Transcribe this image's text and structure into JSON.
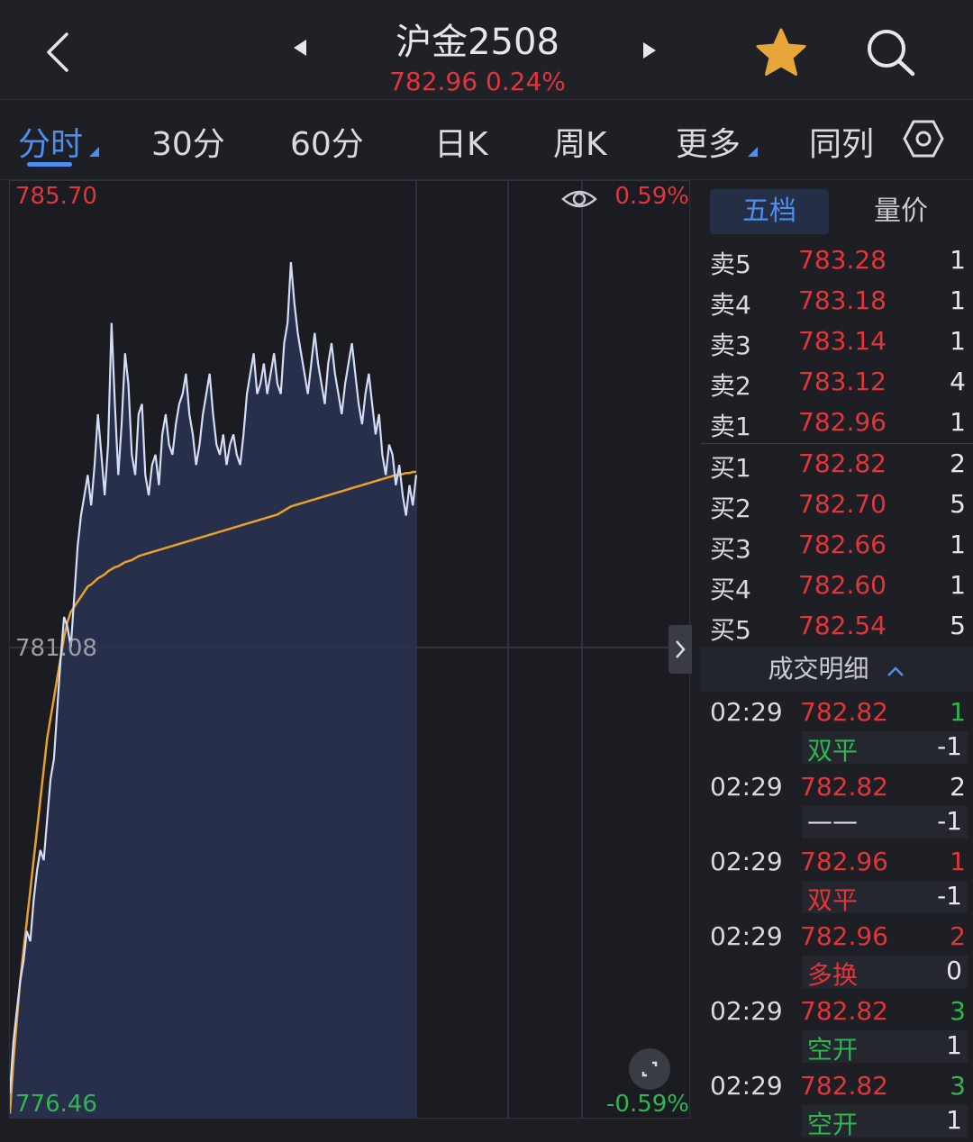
{
  "header": {
    "title": "沪金2508",
    "subtitle": "782.96  0.24%",
    "icons": [
      "back-icon",
      "prev-contract-icon",
      "next-contract-icon",
      "star-icon",
      "search-icon"
    ],
    "star_color": "#e8a63a"
  },
  "tabs": [
    {
      "label": "分时",
      "active": true
    },
    {
      "label": "30分"
    },
    {
      "label": "60分"
    },
    {
      "label": "日K"
    },
    {
      "label": "周K"
    },
    {
      "label": "更多"
    },
    {
      "label": "同列"
    }
  ],
  "chart": {
    "y_max_label": "785.70",
    "y_mid_label": "781.08",
    "y_min_label": "776.46",
    "pct_max_label": "0.59%",
    "pct_min_label": "-0.59%",
    "colors": {
      "price_line": "#d5dcf5",
      "avg_line": "#e8a12b",
      "fill": "#2a3352",
      "up": "#e0353a",
      "down": "#2fb552"
    }
  },
  "chart_data": {
    "type": "area",
    "ylim": [
      776.46,
      785.7
    ],
    "series": [
      {
        "values": [
          776.7,
          777.2,
          777.5,
          777.8,
          778.0,
          778.3,
          778.2,
          778.6,
          778.9,
          779.1,
          779.0,
          779.4,
          779.8,
          780.0,
          780.5,
          781.0,
          781.4,
          781.3,
          781.1,
          781.6,
          782.1,
          782.4,
          782.6,
          782.8,
          782.5,
          782.9,
          783.4,
          783.0,
          782.6,
          783.1,
          784.3,
          783.5,
          782.8,
          783.3,
          784.0,
          783.7,
          783.0,
          782.8,
          783.4,
          783.5,
          782.8,
          782.6,
          782.9,
          783.0,
          782.7,
          783.2,
          783.4,
          783.1,
          783.0,
          783.3,
          783.5,
          783.6,
          783.8,
          783.4,
          783.2,
          782.9,
          783.1,
          783.4,
          783.6,
          783.8,
          783.4,
          783.1,
          783.0,
          783.2,
          782.9,
          783.1,
          783.2,
          783.0,
          782.9,
          783.2,
          783.6,
          783.8,
          784.0,
          783.6,
          783.7,
          783.9,
          783.6,
          783.8,
          784.0,
          783.7,
          783.6,
          784.1,
          784.3,
          784.9,
          784.5,
          784.2,
          784.0,
          783.8,
          783.6,
          783.9,
          784.2,
          783.9,
          783.7,
          783.5,
          783.9,
          784.1,
          783.8,
          783.6,
          783.4,
          783.7,
          783.9,
          784.1,
          783.8,
          783.5,
          783.3,
          783.6,
          783.8,
          783.5,
          783.2,
          783.4,
          783.0,
          782.8,
          783.1,
          783.0,
          782.7,
          782.9,
          782.6,
          782.4,
          782.7,
          782.5,
          782.8
        ],
        "color": "#d5dcf5"
      },
      {
        "values": [
          776.5,
          777.0,
          777.4,
          777.8,
          778.1,
          778.4,
          778.7,
          779.0,
          779.3,
          779.6,
          779.9,
          780.2,
          780.4,
          780.6,
          780.8,
          781.0,
          781.2,
          781.35,
          781.45,
          781.5,
          781.55,
          781.6,
          781.65,
          781.7,
          781.72,
          781.75,
          781.78,
          781.8,
          781.82,
          781.85,
          781.87,
          781.89,
          781.9,
          781.92,
          781.94,
          781.95,
          781.96,
          781.98,
          782.0,
          782.01,
          782.02,
          782.03,
          782.04,
          782.05,
          782.06,
          782.07,
          782.08,
          782.09,
          782.1,
          782.11,
          782.12,
          782.13,
          782.14,
          782.15,
          782.16,
          782.17,
          782.18,
          782.19,
          782.2,
          782.21,
          782.22,
          782.23,
          782.24,
          782.25,
          782.26,
          782.27,
          782.28,
          782.29,
          782.3,
          782.31,
          782.32,
          782.33,
          782.34,
          782.35,
          782.36,
          782.37,
          782.38,
          782.39,
          782.4,
          782.41,
          782.43,
          782.45,
          782.47,
          782.49,
          782.5,
          782.51,
          782.52,
          782.53,
          782.54,
          782.55,
          782.56,
          782.57,
          782.58,
          782.59,
          782.6,
          782.61,
          782.62,
          782.63,
          782.64,
          782.65,
          782.66,
          782.67,
          782.68,
          782.69,
          782.7,
          782.71,
          782.72,
          782.73,
          782.74,
          782.75,
          782.76,
          782.77,
          782.78,
          782.79,
          782.8,
          782.8,
          782.81,
          782.82,
          782.82,
          782.83,
          782.83
        ],
        "color": "#e8a12b"
      }
    ]
  },
  "panel_tabs": {
    "active": "五档",
    "other": "量价"
  },
  "order_book": {
    "asks": [
      {
        "label": "卖5",
        "price": "783.28",
        "vol": "1"
      },
      {
        "label": "卖4",
        "price": "783.18",
        "vol": "1"
      },
      {
        "label": "卖3",
        "price": "783.14",
        "vol": "1"
      },
      {
        "label": "卖2",
        "price": "783.12",
        "vol": "4"
      },
      {
        "label": "卖1",
        "price": "782.96",
        "vol": "1"
      }
    ],
    "bids": [
      {
        "label": "买1",
        "price": "782.82",
        "vol": "2"
      },
      {
        "label": "买2",
        "price": "782.70",
        "vol": "5"
      },
      {
        "label": "买3",
        "price": "782.66",
        "vol": "1"
      },
      {
        "label": "买4",
        "price": "782.60",
        "vol": "1"
      },
      {
        "label": "买5",
        "price": "782.54",
        "vol": "5"
      }
    ]
  },
  "trade_detail": {
    "title": "成交明细",
    "rows": [
      {
        "time": "02:29",
        "price": "782.82",
        "vol": "1",
        "vol_color": "green",
        "type": "双平",
        "type_color": "green",
        "change": "-1"
      },
      {
        "time": "02:29",
        "price": "782.82",
        "vol": "2",
        "vol_color": "white",
        "type": "——",
        "type_color": "white",
        "change": "-1"
      },
      {
        "time": "02:29",
        "price": "782.96",
        "vol": "1",
        "vol_color": "red",
        "type": "双平",
        "type_color": "red",
        "change": "-1"
      },
      {
        "time": "02:29",
        "price": "782.96",
        "vol": "2",
        "vol_color": "red",
        "type": "多换",
        "type_color": "red",
        "change": "0"
      },
      {
        "time": "02:29",
        "price": "782.82",
        "vol": "3",
        "vol_color": "green",
        "type": "空开",
        "type_color": "green",
        "change": "1"
      },
      {
        "time": "02:29",
        "price": "782.82",
        "vol": "3",
        "vol_color": "green",
        "type": "空开",
        "type_color": "green",
        "change": "1"
      }
    ]
  }
}
